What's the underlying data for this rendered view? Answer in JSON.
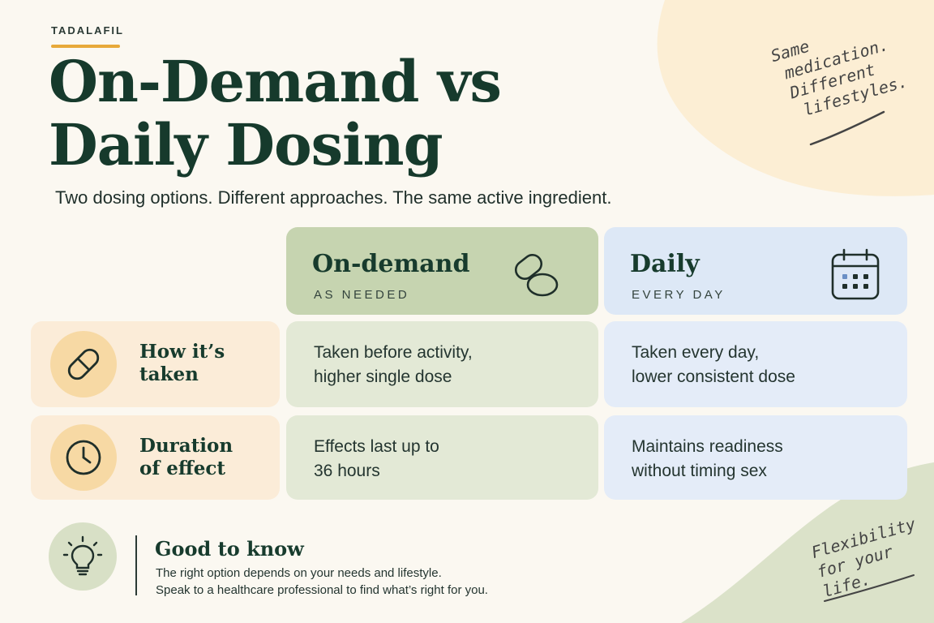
{
  "header": {
    "eyebrow": "TADALAFIL",
    "title_line1": "On-Demand vs",
    "title_line2": "Daily Dosing",
    "subtitle": "Two dosing options. Different approaches. The same active ingredient."
  },
  "notes": {
    "top_right": [
      "Same",
      "medication.",
      "Different",
      "lifestyles."
    ],
    "bottom_right": [
      "Flexibility",
      "for your life."
    ]
  },
  "columns": [
    {
      "title": "On-demand",
      "subtitle": "AS NEEDED",
      "icon": "pills-icon",
      "color": "#c6d4b0"
    },
    {
      "title": "Daily",
      "subtitle": "EVERY DAY",
      "icon": "calendar-icon",
      "color": "#dde8f6"
    }
  ],
  "rows": [
    {
      "label": "How it’s\ntaken",
      "icon": "capsule-icon",
      "cells": [
        "Taken before activity,\nhigher single dose",
        "Taken every day,\nlower consistent dose"
      ]
    },
    {
      "label": "Duration\nof effect",
      "icon": "clock-icon",
      "cells": [
        "Effects last up to\n36 hours",
        "Maintains readiness\nwithout timing sex"
      ]
    }
  ],
  "info": {
    "icon": "lightbulb-icon",
    "title": "Good to know",
    "line1": "The right option depends on your needs and lifestyle.",
    "line2": "Speak to a healthcare professional to find what’s right for you."
  },
  "colors": {
    "background": "#fbf8f1",
    "accent": "#e7a93a",
    "title": "#163a2c",
    "green_cell": "#e3e9d6",
    "blue_cell": "#e4ecf8",
    "peach_cell": "#fbecd8"
  }
}
